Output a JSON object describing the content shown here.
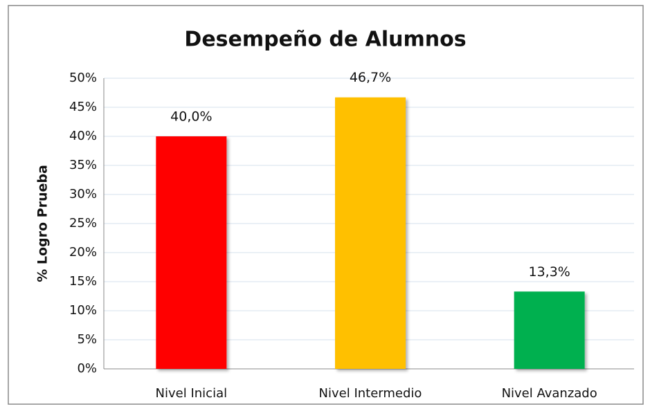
{
  "chart_data": {
    "type": "bar",
    "title": "Desempeño de Alumnos",
    "y_label": "% Logro Prueba",
    "categories": [
      "Nivel Inicial",
      "Nivel Intermedio",
      "Nivel Avanzado"
    ],
    "values": [
      40.0,
      46.7,
      13.3
    ],
    "value_labels": [
      "40,0%",
      "46,7%",
      "13,3%"
    ],
    "colors": [
      "#ff0000",
      "#ffc000",
      "#00b050"
    ],
    "ylim": [
      0,
      50
    ],
    "yticks": [
      {
        "value": 0,
        "label": "0%"
      },
      {
        "value": 5,
        "label": "5%"
      },
      {
        "value": 10,
        "label": "10%"
      },
      {
        "value": 15,
        "label": "15%"
      },
      {
        "value": 20,
        "label": "20%"
      },
      {
        "value": 25,
        "label": "25%"
      },
      {
        "value": 30,
        "label": "30%"
      },
      {
        "value": 35,
        "label": "35%"
      },
      {
        "value": 40,
        "label": "40%"
      },
      {
        "value": 45,
        "label": "45%"
      },
      {
        "value": 50,
        "label": "50%"
      }
    ],
    "grid": true
  }
}
